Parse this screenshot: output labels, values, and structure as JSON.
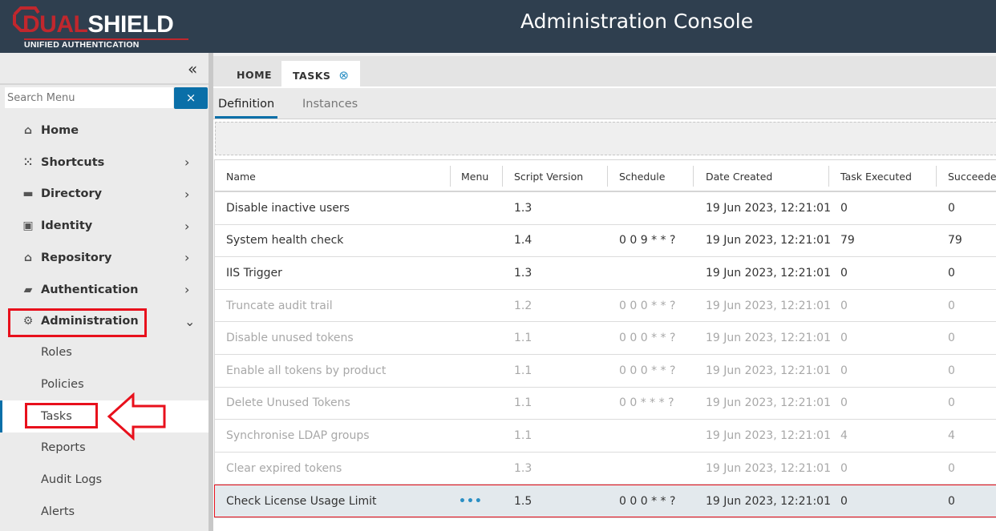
{
  "header": {
    "logo_text_red": "DUAL",
    "logo_text_white": "SHIELD",
    "logo_tagline": "UNIFIED AUTHENTICATION",
    "title": "Administration Console",
    "colors": {
      "header_bg": "#2f3f4f",
      "brand_red": "#c1272d",
      "accent": "#0a6fa8"
    }
  },
  "sidebar": {
    "collapse_icon": "double-chevron-left",
    "search_placeholder": "Search Menu",
    "search_clear": "×",
    "items": [
      {
        "label": "Home",
        "icon": "home-icon"
      },
      {
        "label": "Shortcuts",
        "icon": "grid-icon",
        "chevron": "›"
      },
      {
        "label": "Directory",
        "icon": "folder-icon",
        "chevron": "›"
      },
      {
        "label": "Identity",
        "icon": "id-badge-icon",
        "chevron": "›"
      },
      {
        "label": "Repository",
        "icon": "bank-icon",
        "chevron": "›"
      },
      {
        "label": "Authentication",
        "icon": "wallet-icon",
        "chevron": "›"
      },
      {
        "label": "Administration",
        "icon": "user-gear-icon",
        "chevron": "⌄"
      }
    ],
    "subitems": [
      {
        "label": "Roles"
      },
      {
        "label": "Policies"
      },
      {
        "label": "Tasks",
        "selected": true
      },
      {
        "label": "Reports"
      },
      {
        "label": "Audit Logs"
      },
      {
        "label": "Alerts"
      }
    ]
  },
  "tabs": {
    "home": "HOME",
    "tasks": "TASKS",
    "close": "⊗"
  },
  "subtabs": {
    "definition": "Definition",
    "instances": "Instances"
  },
  "table": {
    "columns": [
      "Name",
      "Menu",
      "Script Version",
      "Schedule",
      "Date Created",
      "Task Executed",
      "Succeeded"
    ],
    "rows": [
      {
        "name": "Disable inactive users",
        "menu": "",
        "version": "1.3",
        "schedule": "",
        "date": "19 Jun 2023, 12:21:01",
        "executed": "0",
        "succeeded": "0",
        "disabled": false
      },
      {
        "name": "System health check",
        "menu": "",
        "version": "1.4",
        "schedule": "0 0 9 * * ?",
        "date": "19 Jun 2023, 12:21:01",
        "executed": "79",
        "succeeded": "79",
        "disabled": false
      },
      {
        "name": "IIS Trigger",
        "menu": "",
        "version": "1.3",
        "schedule": "",
        "date": "19 Jun 2023, 12:21:01",
        "executed": "0",
        "succeeded": "0",
        "disabled": false
      },
      {
        "name": "Truncate audit trail",
        "menu": "",
        "version": "1.2",
        "schedule": "0 0 0 * * ?",
        "date": "19 Jun 2023, 12:21:01",
        "executed": "0",
        "succeeded": "0",
        "disabled": true
      },
      {
        "name": "Disable unused tokens",
        "menu": "",
        "version": "1.1",
        "schedule": "0 0 0 * * ?",
        "date": "19 Jun 2023, 12:21:01",
        "executed": "0",
        "succeeded": "0",
        "disabled": true
      },
      {
        "name": "Enable all tokens by product",
        "menu": "",
        "version": "1.1",
        "schedule": "0 0 0 * * ?",
        "date": "19 Jun 2023, 12:21:01",
        "executed": "0",
        "succeeded": "0",
        "disabled": true
      },
      {
        "name": "Delete Unused Tokens",
        "menu": "",
        "version": "1.1",
        "schedule": "0 0 * * * ?",
        "date": "19 Jun 2023, 12:21:01",
        "executed": "0",
        "succeeded": "0",
        "disabled": true
      },
      {
        "name": "Synchronise LDAP groups",
        "menu": "",
        "version": "1.1",
        "schedule": "",
        "date": "19 Jun 2023, 12:21:01",
        "executed": "4",
        "succeeded": "4",
        "disabled": true
      },
      {
        "name": "Clear expired tokens",
        "menu": "",
        "version": "1.3",
        "schedule": "",
        "date": "19 Jun 2023, 12:21:01",
        "executed": "0",
        "succeeded": "0",
        "disabled": true
      },
      {
        "name": "Check License Usage Limit",
        "menu": "•••",
        "version": "1.5",
        "schedule": "0 0 0 * * ?",
        "date": "19 Jun 2023, 12:21:01",
        "executed": "0",
        "succeeded": "0",
        "disabled": false,
        "active": true
      }
    ]
  }
}
